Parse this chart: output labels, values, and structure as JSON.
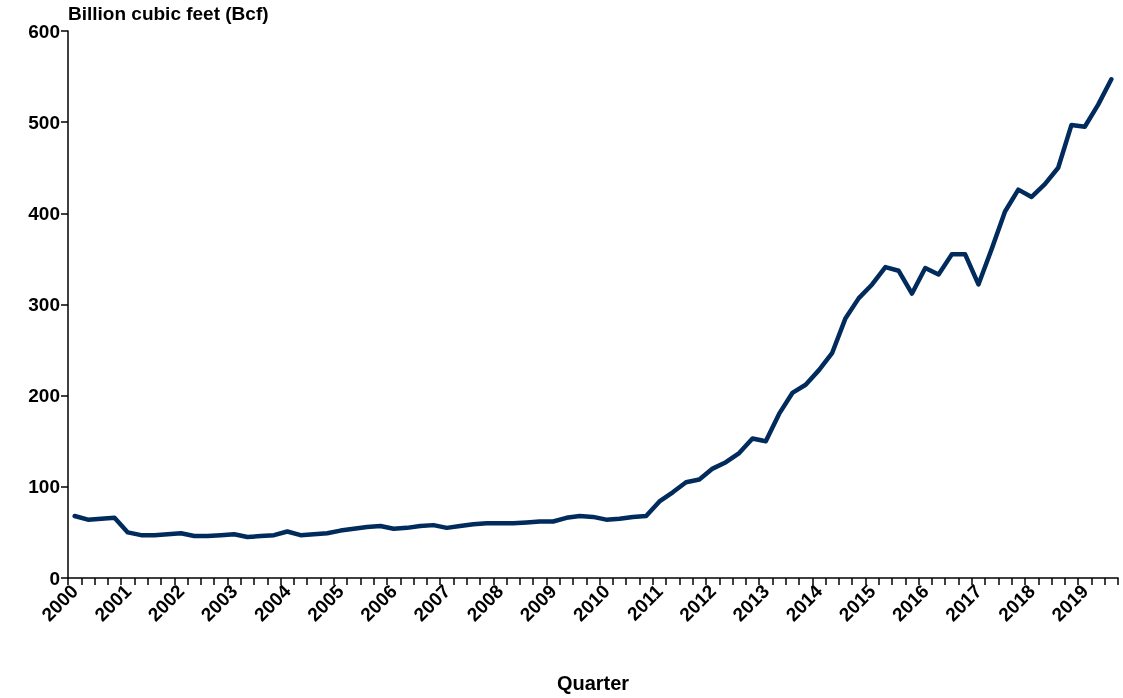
{
  "chart_data": {
    "type": "line",
    "ylabel": "Billion cubic feet (Bcf)",
    "xlabel": "Quarter",
    "categories": [
      "2000",
      null,
      null,
      null,
      "2001",
      null,
      null,
      null,
      "2002",
      null,
      null,
      null,
      "2003",
      null,
      null,
      null,
      "2004",
      null,
      null,
      null,
      "2005",
      null,
      null,
      null,
      "2006",
      null,
      null,
      null,
      "2007",
      null,
      null,
      null,
      "2008",
      null,
      null,
      null,
      "2009",
      null,
      null,
      null,
      "2010",
      null,
      null,
      null,
      "2011",
      null,
      null,
      null,
      "2012",
      null,
      null,
      null,
      "2013",
      null,
      null,
      null,
      "2014",
      null,
      null,
      null,
      "2015",
      null,
      null,
      null,
      "2016",
      null,
      null,
      null,
      "2017",
      null,
      null,
      null,
      "2018",
      null,
      null,
      null,
      "2019",
      null,
      null
    ],
    "series": [
      {
        "color": "#002b5c",
        "values": [
          68,
          64,
          65,
          66,
          50,
          47,
          47,
          48,
          49,
          46,
          46,
          47,
          48,
          45,
          46,
          47,
          51,
          47,
          48,
          49,
          52,
          54,
          56,
          57,
          54,
          55,
          57,
          58,
          55,
          57,
          59,
          60,
          60,
          60,
          61,
          62,
          62,
          66,
          68,
          67,
          64,
          65,
          67,
          68,
          84,
          94,
          105,
          108,
          120,
          127,
          137,
          153,
          150,
          180,
          203,
          212,
          228,
          247,
          285,
          307,
          322,
          341,
          337,
          312,
          340,
          333,
          355,
          355,
          322,
          361,
          402,
          426,
          418,
          432,
          450,
          497,
          495,
          519,
          547
        ]
      }
    ],
    "ylim": [
      0,
      600
    ],
    "yticks": [
      0,
      100,
      200,
      300,
      400,
      500,
      600
    ],
    "marker": "none",
    "line_style": "solid"
  }
}
